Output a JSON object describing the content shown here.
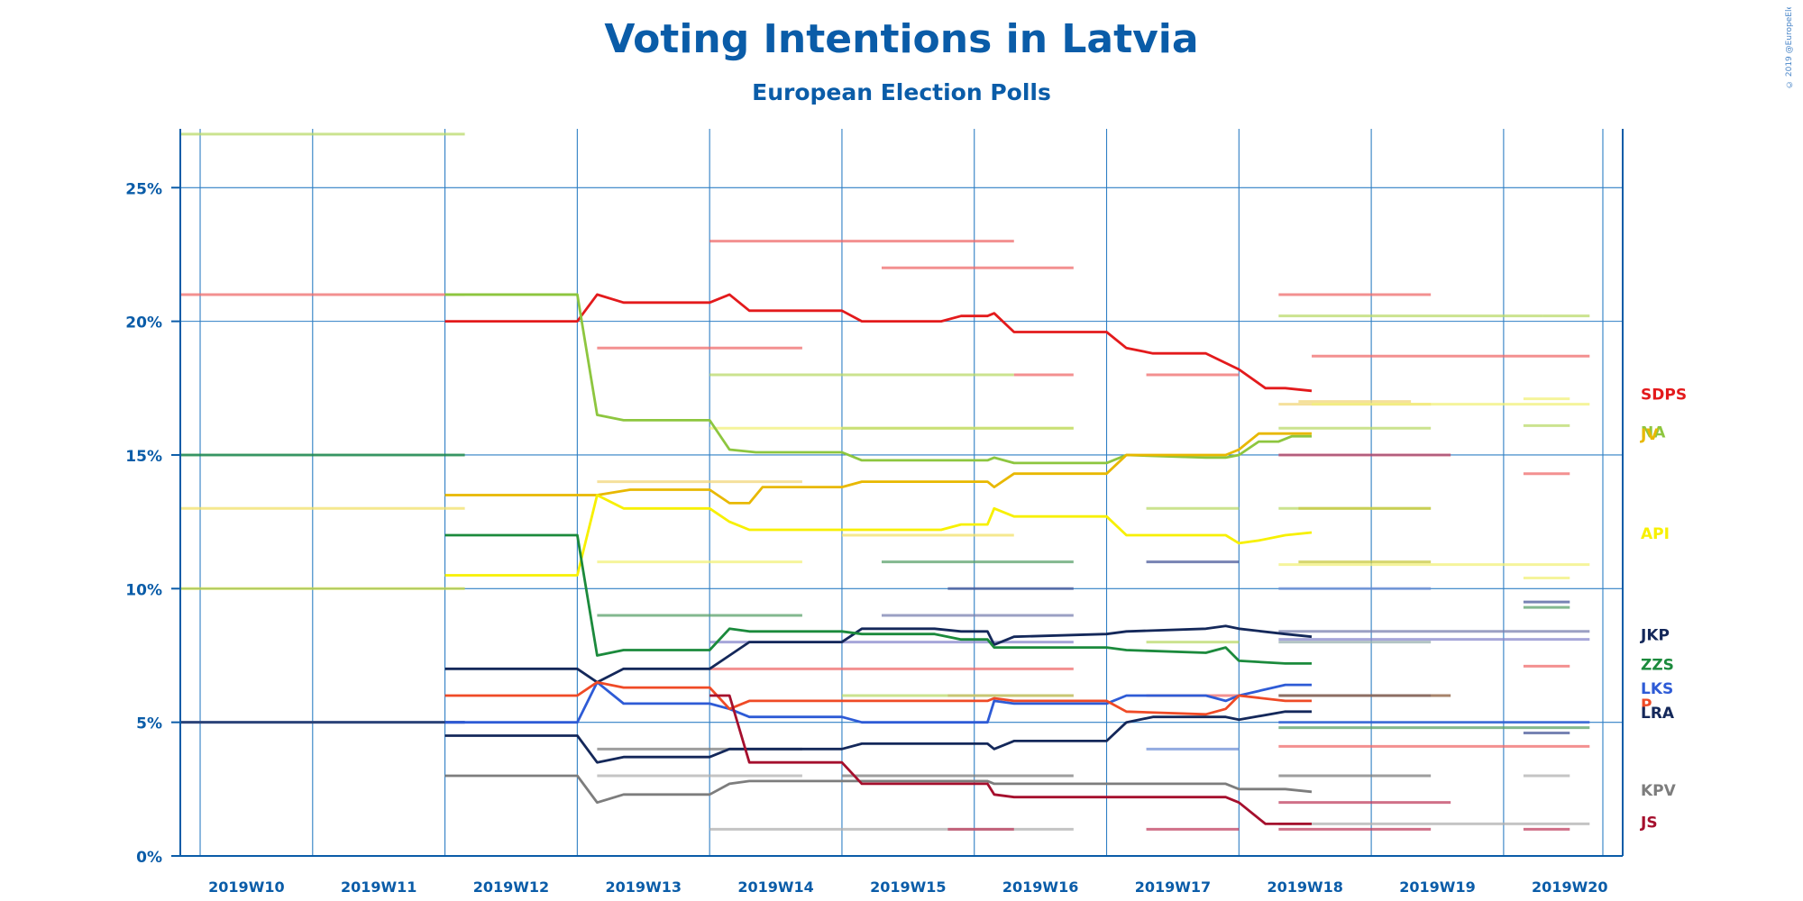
{
  "chart_data": {
    "type": "line",
    "title": "Voting Intentions in Latvia",
    "subtitle": "European Election Polls",
    "copyright": "© 2019 @EuropeElects",
    "xlabel": "",
    "ylabel": "",
    "ylim": [
      0,
      27.2
    ],
    "y_ticks": [
      0,
      5,
      10,
      15,
      20,
      25
    ],
    "y_tick_labels": [
      "0%",
      "5%",
      "10%",
      "15%",
      "20%",
      "25%"
    ],
    "x_range": [
      "2019W10",
      "2019W20"
    ],
    "x_tick_labels": [
      "2019W10",
      "2019W11",
      "2019W12",
      "2019W13",
      "2019W14",
      "2019W15",
      "2019W16",
      "2019W17",
      "2019W18",
      "2019W19",
      "2019W20"
    ],
    "grid": true,
    "legend": "right (labels at line ends)",
    "colors": {
      "axis": "#0a5ca8",
      "grid": "#2f7fc4",
      "text": "#0a5ca8"
    },
    "series": [
      {
        "name": "SDPS",
        "color": "#e31a1c",
        "x": [
          12.0,
          13.0,
          13.15,
          13.35,
          14.0,
          14.15,
          14.3,
          15.0,
          15.15,
          15.75,
          15.9,
          16.1,
          16.15,
          16.3,
          17.0,
          17.15,
          17.35,
          17.75,
          18.0,
          18.2,
          18.35,
          18.55
        ],
        "values": [
          20.0,
          20.0,
          21.0,
          20.7,
          20.7,
          21.0,
          20.4,
          20.4,
          20.0,
          20.0,
          20.2,
          20.2,
          20.3,
          19.6,
          19.6,
          19.0,
          18.8,
          18.8,
          18.2,
          17.5,
          17.5,
          17.4
        ]
      },
      {
        "name": "NA",
        "color": "#8dc63f",
        "x": [
          12.0,
          13.0,
          13.15,
          13.35,
          14.0,
          14.15,
          14.35,
          15.0,
          15.15,
          15.7,
          15.9,
          16.1,
          16.15,
          16.3,
          16.75,
          17.0,
          17.15,
          17.75,
          17.9,
          18.0,
          18.15,
          18.3,
          18.4,
          18.55
        ],
        "values": [
          21.0,
          21.0,
          16.5,
          16.3,
          16.3,
          15.2,
          15.1,
          15.1,
          14.8,
          14.8,
          14.8,
          14.8,
          14.9,
          14.7,
          14.7,
          14.7,
          15.0,
          14.9,
          14.9,
          15.0,
          15.5,
          15.5,
          15.7,
          15.7
        ]
      },
      {
        "name": "JV",
        "color": "#e8b800",
        "x": [
          12.0,
          13.0,
          13.15,
          13.4,
          14.0,
          14.15,
          14.3,
          14.4,
          15.0,
          15.15,
          15.7,
          15.9,
          16.1,
          16.15,
          16.3,
          16.75,
          17.0,
          17.15,
          17.75,
          17.9,
          18.0,
          18.15,
          18.3,
          18.55
        ],
        "values": [
          13.5,
          13.5,
          13.5,
          13.7,
          13.7,
          13.2,
          13.2,
          13.8,
          13.8,
          14.0,
          14.0,
          14.0,
          14.0,
          13.8,
          14.3,
          14.3,
          14.3,
          15.0,
          15.0,
          15.0,
          15.2,
          15.8,
          15.8,
          15.8
        ]
      },
      {
        "name": "API",
        "color": "#f7f000",
        "x": [
          12.0,
          13.0,
          13.15,
          13.35,
          14.0,
          14.15,
          14.3,
          15.0,
          15.15,
          15.75,
          15.9,
          16.1,
          16.15,
          16.3,
          17.0,
          17.15,
          17.75,
          17.9,
          18.0,
          18.15,
          18.35,
          18.55
        ],
        "values": [
          10.5,
          10.5,
          13.5,
          13.0,
          13.0,
          12.5,
          12.2,
          12.2,
          12.2,
          12.2,
          12.4,
          12.4,
          13.0,
          12.7,
          12.7,
          12.0,
          12.0,
          12.0,
          11.7,
          11.8,
          12.0,
          12.1
        ]
      },
      {
        "name": "JKP",
        "color": "#14285a",
        "x": [
          12.0,
          13.0,
          13.15,
          13.35,
          14.0,
          14.15,
          14.3,
          15.0,
          15.15,
          15.7,
          15.9,
          16.1,
          16.15,
          16.3,
          17.0,
          17.15,
          17.75,
          17.9,
          18.0,
          18.35,
          18.55
        ],
        "values": [
          7.0,
          7.0,
          6.5,
          7.0,
          7.0,
          7.5,
          8.0,
          8.0,
          8.5,
          8.5,
          8.4,
          8.4,
          7.9,
          8.2,
          8.3,
          8.4,
          8.5,
          8.6,
          8.5,
          8.3,
          8.2
        ]
      },
      {
        "name": "ZZS",
        "color": "#1b8a3c",
        "x": [
          12.0,
          13.0,
          13.15,
          13.35,
          14.0,
          14.15,
          14.3,
          15.0,
          15.15,
          15.7,
          15.9,
          16.1,
          16.15,
          16.3,
          17.0,
          17.15,
          17.75,
          17.9,
          18.0,
          18.35,
          18.55
        ],
        "values": [
          12.0,
          12.0,
          7.5,
          7.7,
          7.7,
          8.5,
          8.4,
          8.4,
          8.3,
          8.3,
          8.1,
          8.1,
          7.8,
          7.8,
          7.8,
          7.7,
          7.6,
          7.8,
          7.3,
          7.2,
          7.2
        ]
      },
      {
        "name": "LKS",
        "color": "#2e5bd6",
        "x": [
          12.0,
          13.0,
          13.15,
          13.35,
          14.0,
          14.15,
          14.3,
          15.0,
          15.15,
          15.7,
          15.9,
          16.1,
          16.15,
          16.3,
          17.0,
          17.15,
          17.75,
          17.9,
          18.0,
          18.35,
          18.55
        ],
        "values": [
          5.0,
          5.0,
          6.5,
          5.7,
          5.7,
          5.5,
          5.2,
          5.2,
          5.0,
          5.0,
          5.0,
          5.0,
          5.8,
          5.7,
          5.7,
          6.0,
          6.0,
          5.8,
          6.0,
          6.4,
          6.4
        ]
      },
      {
        "name": "P",
        "color": "#ef4a26",
        "x": [
          12.0,
          13.0,
          13.15,
          13.35,
          14.0,
          14.15,
          14.3,
          15.0,
          15.15,
          15.7,
          15.9,
          16.1,
          16.15,
          16.3,
          17.0,
          17.15,
          17.75,
          17.9,
          18.0,
          18.35,
          18.55
        ],
        "values": [
          6.0,
          6.0,
          6.5,
          6.3,
          6.3,
          5.5,
          5.8,
          5.8,
          5.8,
          5.8,
          5.8,
          5.8,
          5.9,
          5.8,
          5.8,
          5.4,
          5.3,
          5.5,
          6.0,
          5.8,
          5.8
        ]
      },
      {
        "name": "LRA",
        "color": "#14285a",
        "x": [
          12.0,
          13.0,
          13.15,
          13.35,
          14.0,
          14.15,
          14.3,
          15.0,
          15.15,
          15.7,
          15.9,
          16.1,
          16.15,
          16.3,
          17.0,
          17.15,
          17.35,
          17.75,
          17.9,
          18.0,
          18.35,
          18.55
        ],
        "values": [
          4.5,
          4.5,
          3.5,
          3.7,
          3.7,
          4.0,
          4.0,
          4.0,
          4.2,
          4.2,
          4.2,
          4.2,
          4.0,
          4.3,
          4.3,
          5.0,
          5.2,
          5.2,
          5.2,
          5.1,
          5.4,
          5.4
        ]
      },
      {
        "name": "KPV",
        "color": "#7d7d7d",
        "x": [
          12.0,
          13.0,
          13.15,
          13.35,
          14.0,
          14.15,
          14.3,
          15.0,
          15.15,
          15.7,
          15.9,
          16.1,
          16.15,
          16.3,
          17.0,
          17.15,
          17.75,
          17.9,
          18.0,
          18.35,
          18.55
        ],
        "values": [
          3.0,
          3.0,
          2.0,
          2.3,
          2.3,
          2.7,
          2.8,
          2.8,
          2.8,
          2.8,
          2.8,
          2.8,
          2.7,
          2.7,
          2.7,
          2.7,
          2.7,
          2.7,
          2.5,
          2.5,
          2.4
        ]
      },
      {
        "name": "JS",
        "color": "#a50f2d",
        "x": [
          14.0,
          14.15,
          14.3,
          15.0,
          15.15,
          15.7,
          15.9,
          16.1,
          16.15,
          16.3,
          17.0,
          17.15,
          17.75,
          17.9,
          18.0,
          18.2,
          18.35,
          18.55
        ],
        "values": [
          6.0,
          6.0,
          3.5,
          3.5,
          2.7,
          2.7,
          2.7,
          2.7,
          2.3,
          2.2,
          2.2,
          2.2,
          2.2,
          2.2,
          2.0,
          1.2,
          1.2,
          1.2
        ]
      }
    ],
    "poll_segments": [
      {
        "color": "#b9d96a",
        "x": [
          10.0,
          12.15
        ],
        "y": 27.0
      },
      {
        "color": "#ef6b6b",
        "x": [
          10.0,
          12.15
        ],
        "y": 21.0
      },
      {
        "color": "#8dc63f",
        "x": [
          12.0,
          13.0
        ],
        "y": 21.0
      },
      {
        "color": "#1b8a3c",
        "x": [
          10.0,
          12.15
        ],
        "y": 15.0
      },
      {
        "color": "#f2e06a",
        "x": [
          10.0,
          12.15
        ],
        "y": 13.0
      },
      {
        "color": "#c8d840",
        "x": [
          10.0,
          12.15
        ],
        "y": 10.0
      },
      {
        "color": "#6f8fd6",
        "x": [
          10.0,
          12.15
        ],
        "y": 5.0
      },
      {
        "color": "#14285a",
        "x": [
          10.0,
          12.15
        ],
        "y": 5.0
      },
      {
        "color": "#ef6b6b",
        "x": [
          14.0,
          16.3
        ],
        "y": 23.0
      },
      {
        "color": "#ef6b6b",
        "x": [
          15.3,
          16.75
        ],
        "y": 22.0
      },
      {
        "color": "#ef6b6b",
        "x": [
          13.15,
          14.7
        ],
        "y": 19.0
      },
      {
        "color": "#b9d96a",
        "x": [
          14.0,
          16.3
        ],
        "y": 18.0
      },
      {
        "color": "#ef6b6b",
        "x": [
          16.3,
          16.75
        ],
        "y": 18.0
      },
      {
        "color": "#f2f07a",
        "x": [
          14.0,
          16.75
        ],
        "y": 16.0
      },
      {
        "color": "#b9d96a",
        "x": [
          15.0,
          16.75
        ],
        "y": 16.0
      },
      {
        "color": "#f2d67a",
        "x": [
          13.15,
          14.7
        ],
        "y": 14.0
      },
      {
        "color": "#f2f07a",
        "x": [
          13.15,
          14.7
        ],
        "y": 11.0
      },
      {
        "color": "#5aa06a",
        "x": [
          13.15,
          14.7
        ],
        "y": 9.0
      },
      {
        "color": "#8888cc",
        "x": [
          14.0,
          16.75
        ],
        "y": 8.0
      },
      {
        "color": "#ef6b6b",
        "x": [
          14.0,
          16.75
        ],
        "y": 7.0
      },
      {
        "color": "#b0b0b0",
        "x": [
          13.15,
          14.7
        ],
        "y": 3.0
      },
      {
        "color": "#b0b0b0",
        "x": [
          14.0,
          16.75
        ],
        "y": 1.0
      },
      {
        "color": "#7d7d7d",
        "x": [
          13.15,
          14.7
        ],
        "y": 4.0
      },
      {
        "color": "#f2e06a",
        "x": [
          15.0,
          16.3
        ],
        "y": 12.0
      },
      {
        "color": "#5aa06a",
        "x": [
          15.3,
          16.75
        ],
        "y": 11.0
      },
      {
        "color": "#4a5a9a",
        "x": [
          15.8,
          16.75
        ],
        "y": 10.0
      },
      {
        "color": "#7a80b0",
        "x": [
          15.3,
          16.75
        ],
        "y": 9.0
      },
      {
        "color": "#ef6b6b",
        "x": [
          15.8,
          16.75
        ],
        "y": 6.0
      },
      {
        "color": "#b9d96a",
        "x": [
          15.0,
          16.75
        ],
        "y": 6.0
      },
      {
        "color": "#7d7d7d",
        "x": [
          15.0,
          16.75
        ],
        "y": 3.0
      },
      {
        "color": "#c04060",
        "x": [
          15.8,
          16.3
        ],
        "y": 1.0
      },
      {
        "color": "#ef6b6b",
        "x": [
          17.3,
          18.0
        ],
        "y": 18.0
      },
      {
        "color": "#b9d96a",
        "x": [
          17.3,
          18.0
        ],
        "y": 13.0
      },
      {
        "color": "#4a5a9a",
        "x": [
          17.3,
          18.0
        ],
        "y": 11.0
      },
      {
        "color": "#b9d96a",
        "x": [
          17.3,
          18.0
        ],
        "y": 8.0
      },
      {
        "color": "#ef6b6b",
        "x": [
          17.3,
          18.0
        ],
        "y": 6.0
      },
      {
        "color": "#6f8fd6",
        "x": [
          17.3,
          18.0
        ],
        "y": 4.0
      },
      {
        "color": "#c04060",
        "x": [
          17.3,
          18.0
        ],
        "y": 1.0
      },
      {
        "color": "#ef6b6b",
        "x": [
          18.3,
          19.45
        ],
        "y": 21.0
      },
      {
        "color": "#b9d96a",
        "x": [
          18.3,
          20.3
        ],
        "y": 20.2
      },
      {
        "color": "#b9d96a",
        "x": [
          20.3,
          20.65
        ],
        "y": 20.2
      },
      {
        "color": "#ef6b6b",
        "x": [
          18.55,
          20.65
        ],
        "y": 18.7
      },
      {
        "color": "#f2d67a",
        "x": [
          18.3,
          19.45
        ],
        "y": 16.9
      },
      {
        "color": "#f2d67a",
        "x": [
          18.45,
          19.3
        ],
        "y": 17.0
      },
      {
        "color": "#f2f07a",
        "x": [
          18.55,
          20.65
        ],
        "y": 16.9
      },
      {
        "color": "#f2f07a",
        "x": [
          20.15,
          20.5
        ],
        "y": 17.1
      },
      {
        "color": "#b9d96a",
        "x": [
          18.3,
          19.45
        ],
        "y": 16.0
      },
      {
        "color": "#b9d96a",
        "x": [
          20.15,
          20.5
        ],
        "y": 16.1
      },
      {
        "color": "#c04060",
        "x": [
          18.3,
          19.6
        ],
        "y": 15.0
      },
      {
        "color": "#ef6b6b",
        "x": [
          20.15,
          20.5
        ],
        "y": 14.3
      },
      {
        "color": "#b9d96a",
        "x": [
          18.3,
          19.45
        ],
        "y": 13.0
      },
      {
        "color": "#c8c840",
        "x": [
          18.45,
          19.45
        ],
        "y": 13.0
      },
      {
        "color": "#f2f07a",
        "x": [
          18.3,
          20.65
        ],
        "y": 10.9
      },
      {
        "color": "#c8c840",
        "x": [
          18.45,
          19.45
        ],
        "y": 11.0
      },
      {
        "color": "#f2f07a",
        "x": [
          20.15,
          20.5
        ],
        "y": 10.4
      },
      {
        "color": "#6f8fd6",
        "x": [
          18.3,
          19.45
        ],
        "y": 10.0
      },
      {
        "color": "#7a80b0",
        "x": [
          18.3,
          20.65
        ],
        "y": 8.4
      },
      {
        "color": "#8888cc",
        "x": [
          18.3,
          20.65
        ],
        "y": 8.1
      },
      {
        "color": "#9ab0b0",
        "x": [
          18.3,
          19.45
        ],
        "y": 8.0
      },
      {
        "color": "#4a5a9a",
        "x": [
          20.15,
          20.5
        ],
        "y": 9.5
      },
      {
        "color": "#5aa06a",
        "x": [
          20.15,
          20.5
        ],
        "y": 9.3
      },
      {
        "color": "#ef6b6b",
        "x": [
          20.15,
          20.5
        ],
        "y": 7.1
      },
      {
        "color": "#6f8fd6",
        "x": [
          18.3,
          19.45
        ],
        "y": 6.0
      },
      {
        "color": "#8a5a3a",
        "x": [
          18.3,
          19.6
        ],
        "y": 6.0
      },
      {
        "color": "#2e5bd6",
        "x": [
          18.3,
          20.65
        ],
        "y": 5.0
      },
      {
        "color": "#5aa06a",
        "x": [
          18.3,
          20.65
        ],
        "y": 4.8
      },
      {
        "color": "#4a5a9a",
        "x": [
          20.15,
          20.5
        ],
        "y": 4.6
      },
      {
        "color": "#ef6b6b",
        "x": [
          18.3,
          20.65
        ],
        "y": 4.1
      },
      {
        "color": "#7d7d7d",
        "x": [
          18.3,
          19.45
        ],
        "y": 3.0
      },
      {
        "color": "#b0b0b0",
        "x": [
          20.15,
          20.5
        ],
        "y": 3.0
      },
      {
        "color": "#c04060",
        "x": [
          18.3,
          19.6
        ],
        "y": 2.0
      },
      {
        "color": "#b0b0b0",
        "x": [
          18.3,
          20.65
        ],
        "y": 1.2
      },
      {
        "color": "#c04060",
        "x": [
          18.3,
          19.45
        ],
        "y": 1.0
      },
      {
        "color": "#c04060",
        "x": [
          20.15,
          20.5
        ],
        "y": 1.0
      }
    ]
  }
}
